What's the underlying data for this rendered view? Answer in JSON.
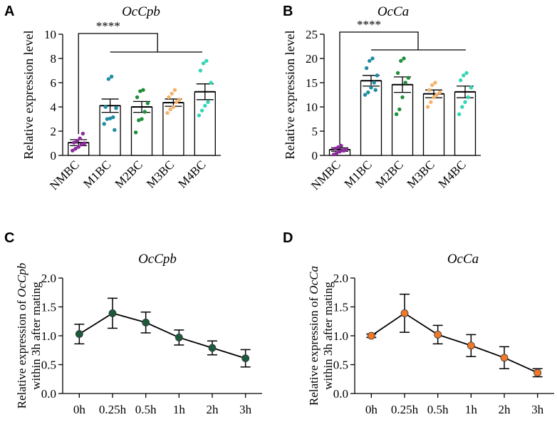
{
  "chart_data": [
    {
      "panel": "A",
      "type": "bar",
      "title": "OcCpb",
      "xlabel": "",
      "ylabel": "Relative expression level",
      "ylim": [
        0,
        10
      ],
      "yticks": [
        "0",
        "2",
        "4",
        "6",
        "8",
        "10"
      ],
      "categories": [
        "NMBC",
        "M1BC",
        "M2BC",
        "M3BC",
        "M4BC"
      ],
      "values": [
        1.05,
        4.1,
        4.0,
        4.35,
        5.25
      ],
      "errors": [
        0.25,
        0.55,
        0.45,
        0.3,
        0.65
      ],
      "point_colors": [
        "#8b2b9c",
        "#1f8ca3",
        "#1f8f3a",
        "#f5b26b",
        "#33d6b5"
      ],
      "points": [
        [
          0.4,
          0.55,
          0.7,
          0.9,
          1.0,
          1.05,
          1.2,
          1.4,
          1.8
        ],
        [
          2.6,
          3.0,
          3.05,
          3.15,
          3.9,
          4.0,
          6.3,
          6.5,
          2.1
        ],
        [
          1.9,
          2.9,
          3.0,
          3.6,
          4.3,
          4.8,
          5.3,
          5.4
        ],
        [
          3.5,
          3.8,
          4.0,
          4.4,
          4.6,
          4.8,
          5.1,
          5.4
        ],
        [
          3.3,
          3.7,
          4.1,
          4.4,
          6.0,
          7.0,
          7.6,
          7.8
        ]
      ],
      "significance": "****"
    },
    {
      "panel": "B",
      "type": "bar",
      "title": "OcCa",
      "xlabel": "",
      "ylabel": "Relative expression level",
      "ylim": [
        0,
        25
      ],
      "yticks": [
        "0",
        "5",
        "10",
        "15",
        "20",
        "25"
      ],
      "categories": [
        "NMBC",
        "M1BC",
        "M2BC",
        "M3BC",
        "M4BC"
      ],
      "values": [
        1.2,
        15.4,
        14.6,
        12.7,
        13.1
      ],
      "errors": [
        0.35,
        1.1,
        1.6,
        0.8,
        1.2
      ],
      "point_colors": [
        "#8b2b9c",
        "#1f8ca3",
        "#1f8f3a",
        "#f5b26b",
        "#33d6b5"
      ],
      "points": [
        [
          0.2,
          0.5,
          0.8,
          1.0,
          1.2,
          1.4,
          1.7,
          2.0,
          1.0
        ],
        [
          12.5,
          13.0,
          14.0,
          15.0,
          16.5,
          18.0,
          19.5,
          20.0,
          13.5
        ],
        [
          8.5,
          9.5,
          12.0,
          15.0,
          16.0,
          17.0,
          19.5,
          20.0
        ],
        [
          10.0,
          11.0,
          12.0,
          12.5,
          13.0,
          13.5,
          14.5,
          15.0
        ],
        [
          8.5,
          10.0,
          11.0,
          12.0,
          14.0,
          15.5,
          16.5,
          17.0
        ]
      ],
      "significance": "****"
    },
    {
      "panel": "C",
      "type": "line",
      "title": "OcCpb",
      "xlabel": "",
      "ylabel_line1_prefix": "Relative expression of ",
      "ylabel_gene": "OcCpb",
      "ylabel_line2": "within 3h after mating",
      "ylim": [
        0,
        2.0
      ],
      "yticks": [
        "0.0",
        "0.5",
        "1.0",
        "1.5",
        "2.0"
      ],
      "x": [
        "0h",
        "0.25h",
        "0.5h",
        "1h",
        "2h",
        "3h"
      ],
      "values": [
        1.03,
        1.39,
        1.23,
        0.97,
        0.79,
        0.61
      ],
      "errors": [
        0.17,
        0.26,
        0.18,
        0.13,
        0.12,
        0.15
      ],
      "color": "#1d5a3c"
    },
    {
      "panel": "D",
      "type": "line",
      "title": "OcCa",
      "xlabel": "",
      "ylabel_line1_prefix": "Relative expression of ",
      "ylabel_gene": "OcCa",
      "ylabel_line2": "within 3h after mating",
      "ylim": [
        0,
        2.0
      ],
      "yticks": [
        "0.0",
        "0.5",
        "1.0",
        "1.5",
        "2.0"
      ],
      "x": [
        "0h",
        "0.25h",
        "0.5h",
        "1h",
        "2h",
        "3h"
      ],
      "values": [
        1.0,
        1.39,
        1.02,
        0.83,
        0.62,
        0.36
      ],
      "errors": [
        0.03,
        0.33,
        0.16,
        0.19,
        0.19,
        0.07
      ],
      "color": "#f07828"
    }
  ]
}
